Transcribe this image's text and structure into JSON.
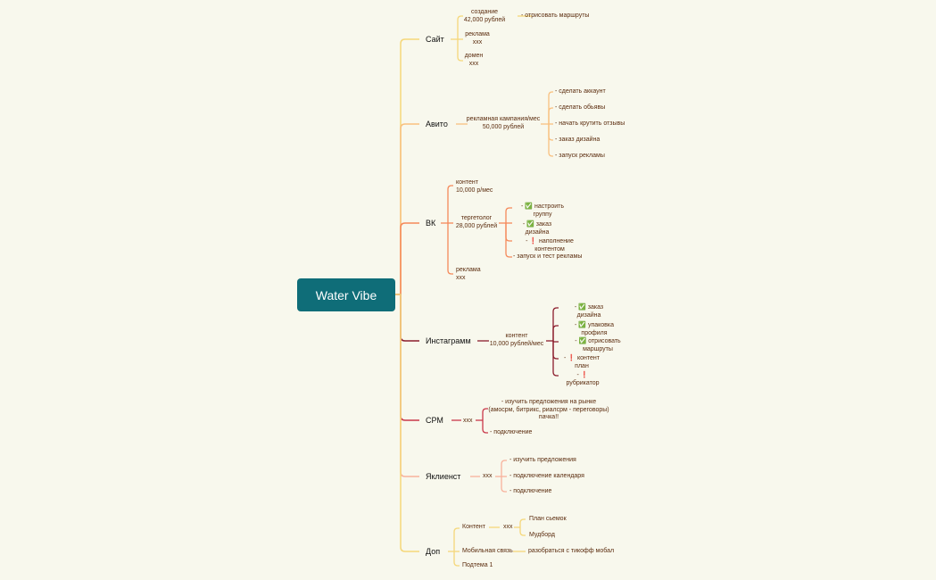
{
  "root": "Water Vibe",
  "colors": {
    "root": "#0f6d78",
    "site": "#f5d77a",
    "avito": "#f9c07f",
    "vk": "#f5895a",
    "insta": "#8b1c2c",
    "crm": "#c9384a",
    "yclients": "#f7b29c",
    "extra": "#f5d77a"
  },
  "branches": {
    "site": {
      "label": "Сайт",
      "children": [
        "создание\n42,000 рублей",
        "реклама\nxxx",
        "домен\nxxx"
      ],
      "sub": "- отрисовать маршруты"
    },
    "avito": {
      "label": "Авито",
      "child": "рекламная кампания/мес\n50,000 рублей",
      "tasks": [
        "- сделать аккаунт",
        "- сделать обьявы",
        "- начать крутить отзывы",
        "- заказ дизайна",
        "- запуск рекламы"
      ]
    },
    "vk": {
      "label": "ВК",
      "children": [
        "контент\n10,000 р/мес",
        "тергетолог\n28,000 рублей",
        "реклама\nxxx"
      ],
      "tasks": [
        "- ✅ настроить\n группу",
        "- ✅ заказ\nдизайна",
        "- ❗ наполнение\nконтентом",
        "- запуск и тест рекламы"
      ]
    },
    "insta": {
      "label": "Инстаграмм",
      "child": "контент\n10,000 рублей/мес",
      "tasks": [
        "- ✅ заказ\nдизайна",
        "- ✅ упаковка\nпрофиля",
        "- ✅ отрисовать\nмаршруты",
        "- ❗ контент\nплан",
        "- ❗\nрубрикатор"
      ]
    },
    "crm": {
      "label": "СРМ",
      "child": "xxx",
      "tasks": [
        "- изучить предложения на рынке\n(амосрм, битрикс, риалсрм - переговоры)\nпачка!!",
        "- подключение"
      ]
    },
    "yclients": {
      "label": "Яклиенст",
      "child": "xxx",
      "tasks": [
        "- изучить предложения",
        "- подключение календаря",
        "- подключение"
      ]
    },
    "extra": {
      "label": "Доп",
      "children": [
        "Контент",
        "Мобильная связь",
        "Подтема 1"
      ],
      "content_child": "xxx",
      "content_tasks": [
        "План сьемок",
        "Мудборд"
      ],
      "mobile_task": "разобраться с тикофф мобал"
    }
  }
}
